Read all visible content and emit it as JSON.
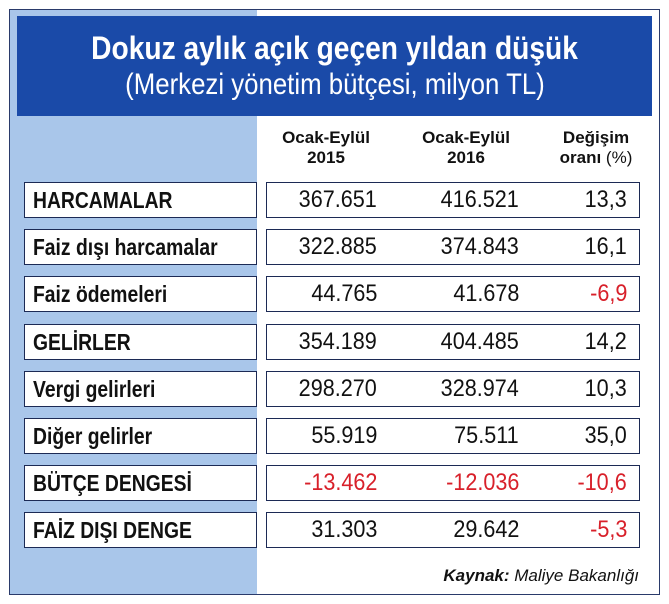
{
  "chart_data": {
    "type": "table",
    "title": "Dokuz aylık açık geçen yıldan düşük",
    "subtitle": "(Merkezi yönetim bütçesi, milyon TL)",
    "columns": [
      {
        "line1": "Ocak-Eylül",
        "line2": "2015"
      },
      {
        "line1": "Ocak-Eylül",
        "line2": "2016"
      },
      {
        "line1": "Değişim",
        "line2": "oranı",
        "unit": "(%)"
      }
    ],
    "rows": [
      {
        "label": "HARCAMALAR",
        "v2015": "367.651",
        "v2016": "416.521",
        "change": "13,3"
      },
      {
        "label": "Faiz dışı harcamalar",
        "v2015": "322.885",
        "v2016": "374.843",
        "change": "16,1"
      },
      {
        "label": "Faiz ödemeleri",
        "v2015": "44.765",
        "v2016": "41.678",
        "change": "-6,9"
      },
      {
        "label": "GELİRLER",
        "v2015": "354.189",
        "v2016": "404.485",
        "change": "14,2"
      },
      {
        "label": "Vergi gelirleri",
        "v2015": "298.270",
        "v2016": "328.974",
        "change": "10,3"
      },
      {
        "label": "Diğer gelirler",
        "v2015": "55.919",
        "v2016": "75.511",
        "change": "35,0"
      },
      {
        "label": "BÜTÇE DENGESİ",
        "v2015": "-13.462",
        "v2016": "-12.036",
        "change": "-10,6"
      },
      {
        "label": "FAİZ DIŞI DENGE",
        "v2015": "31.303",
        "v2016": "29.642",
        "change": "-5,3"
      }
    ],
    "source_label": "Kaynak:",
    "source": "Maliye Bakanlığı"
  },
  "colors": {
    "header_bg": "#1a4aa8",
    "left_band": "#a9c6ea",
    "negative": "#d8202a",
    "text": "#111111"
  }
}
